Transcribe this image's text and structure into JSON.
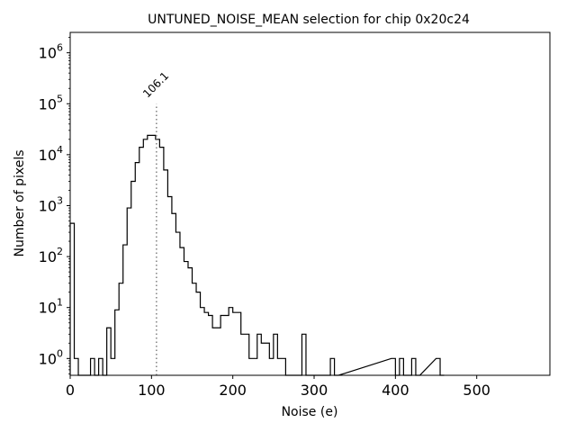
{
  "chart_data": {
    "type": "histogram-step",
    "title": "UNTUNED_NOISE_MEAN selection for chip 0x20c24",
    "xlabel": "Noise (e)",
    "ylabel": "Number of pixels",
    "x_scale": "linear",
    "y_scale": "log",
    "xlim": [
      0,
      590
    ],
    "ylim_log10": [
      -0.33,
      6.4
    ],
    "x_ticks": [
      {
        "value": 0,
        "label": "0"
      },
      {
        "value": 100,
        "label": "100"
      },
      {
        "value": 200,
        "label": "200"
      },
      {
        "value": 300,
        "label": "300"
      },
      {
        "value": 400,
        "label": "400"
      },
      {
        "value": 500,
        "label": "500"
      }
    ],
    "y_ticks": [
      {
        "exponent": 0,
        "base": "10",
        "exp_label": "0"
      },
      {
        "exponent": 1,
        "base": "10",
        "exp_label": "1"
      },
      {
        "exponent": 2,
        "base": "10",
        "exp_label": "2"
      },
      {
        "exponent": 3,
        "base": "10",
        "exp_label": "3"
      },
      {
        "exponent": 4,
        "base": "10",
        "exp_label": "4"
      },
      {
        "exponent": 5,
        "base": "10",
        "exp_label": "5"
      },
      {
        "exponent": 6,
        "base": "10",
        "exp_label": "6"
      }
    ],
    "bin_width": 5,
    "bins": [
      [
        0,
        450
      ],
      [
        5,
        1
      ],
      [
        10,
        0
      ],
      [
        15,
        0
      ],
      [
        20,
        0
      ],
      [
        25,
        1
      ],
      [
        30,
        0
      ],
      [
        35,
        1
      ],
      [
        40,
        0
      ],
      [
        45,
        4
      ],
      [
        50,
        1
      ],
      [
        55,
        9
      ],
      [
        60,
        30
      ],
      [
        65,
        170
      ],
      [
        70,
        900
      ],
      [
        75,
        3000
      ],
      [
        80,
        7000
      ],
      [
        85,
        14000
      ],
      [
        90,
        20000
      ],
      [
        95,
        24000
      ],
      [
        100,
        24000
      ],
      [
        105,
        20000
      ],
      [
        110,
        14000
      ],
      [
        115,
        5000
      ],
      [
        120,
        1500
      ],
      [
        125,
        700
      ],
      [
        130,
        300
      ],
      [
        135,
        150
      ],
      [
        140,
        80
      ],
      [
        145,
        60
      ],
      [
        150,
        30
      ],
      [
        155,
        20
      ],
      [
        160,
        10
      ],
      [
        165,
        8
      ],
      [
        170,
        7
      ],
      [
        175,
        4
      ],
      [
        180,
        4
      ],
      [
        185,
        7
      ],
      [
        190,
        7
      ],
      [
        195,
        10
      ],
      [
        200,
        8
      ],
      [
        205,
        8
      ],
      [
        210,
        3
      ],
      [
        215,
        3
      ],
      [
        220,
        1
      ],
      [
        225,
        1
      ],
      [
        230,
        3
      ],
      [
        235,
        2
      ],
      [
        240,
        2
      ],
      [
        245,
        1
      ],
      [
        250,
        3
      ],
      [
        255,
        1
      ],
      [
        260,
        1
      ],
      [
        265,
        0
      ],
      [
        270,
        0
      ],
      [
        275,
        0
      ],
      [
        280,
        0
      ],
      [
        285,
        3
      ],
      [
        290,
        0
      ],
      [
        295,
        0
      ],
      [
        300,
        0
      ],
      [
        305,
        0
      ],
      [
        310,
        0
      ],
      [
        315,
        0
      ],
      [
        320,
        1
      ],
      [
        325,
        0
      ],
      [
        395,
        1
      ],
      [
        400,
        0
      ],
      [
        405,
        1
      ],
      [
        410,
        0
      ],
      [
        415,
        0
      ],
      [
        420,
        1
      ],
      [
        425,
        0
      ],
      [
        450,
        1
      ],
      [
        455,
        0
      ]
    ],
    "series_color": "#000000",
    "annotation": {
      "value": 106.1,
      "label": "106.1",
      "line_style": "dotted",
      "color": "#808080",
      "line_top_count": 100000
    }
  }
}
